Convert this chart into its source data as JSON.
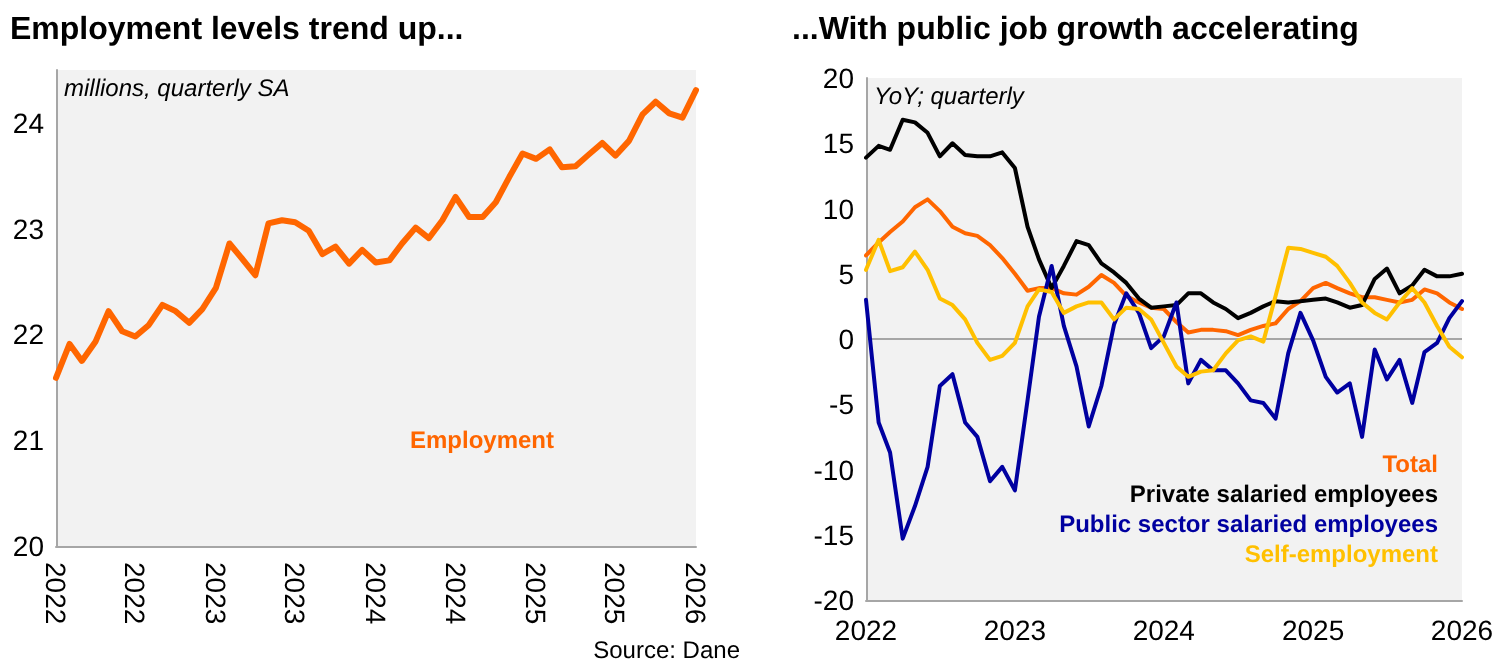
{
  "chart_data": [
    {
      "type": "line",
      "title": "Employment levels trend up...",
      "annotations": [
        "millions, quarterly SA",
        "Source: Dane"
      ],
      "x": [
        "2022-01",
        "2022-02",
        "2022-03",
        "2022-04",
        "2022-05",
        "2022-06",
        "2022-07",
        "2022-08",
        "2022-09",
        "2022-10",
        "2022-11",
        "2022-12",
        "2023-01",
        "2023-02",
        "2023-03",
        "2023-04",
        "2023-05",
        "2023-06",
        "2023-07",
        "2023-08",
        "2023-09",
        "2023-10",
        "2023-11",
        "2023-12",
        "2024-01",
        "2024-02",
        "2024-03",
        "2024-04",
        "2024-05",
        "2024-06",
        "2024-07",
        "2024-08",
        "2024-09",
        "2024-10",
        "2024-11",
        "2024-12",
        "2025-01",
        "2025-02",
        "2025-03",
        "2025-04",
        "2025-05",
        "2025-06",
        "2025-07",
        "2025-08",
        "2025-09",
        "2025-10",
        "2025-11",
        "2025-12",
        "2026-01"
      ],
      "series": [
        {
          "name": "Employment",
          "color": "#ff6600",
          "values": [
            21.59,
            21.91,
            21.75,
            21.93,
            22.22,
            22.03,
            21.98,
            22.09,
            22.28,
            22.22,
            22.11,
            22.24,
            22.44,
            22.86,
            22.72,
            22.56,
            23.05,
            23.08,
            23.06,
            22.98,
            22.76,
            22.83,
            22.67,
            22.8,
            22.68,
            22.7,
            22.86,
            23.01,
            22.91,
            23.08,
            23.3,
            23.11,
            23.11,
            23.25,
            23.49,
            23.71,
            23.66,
            23.75,
            23.58,
            23.59,
            23.7,
            23.81,
            23.69,
            23.83,
            24.08,
            24.2,
            24.09,
            24.05,
            24.31
          ]
        }
      ],
      "xlim": [
        "2022-01",
        "2026-01"
      ],
      "xticks": [
        {
          "value": "2022-01",
          "label": "2022"
        },
        {
          "value": "2022-07",
          "label": "2022"
        },
        {
          "value": "2023-01",
          "label": "2023"
        },
        {
          "value": "2023-07",
          "label": "2023"
        },
        {
          "value": "2024-01",
          "label": "2024"
        },
        {
          "value": "2024-07",
          "label": "2024"
        },
        {
          "value": "2025-01",
          "label": "2025"
        },
        {
          "value": "2025-07",
          "label": "2025"
        },
        {
          "value": "2026-01",
          "label": "2026"
        }
      ],
      "ylim": [
        20,
        24.5
      ],
      "yticks": [
        20,
        21,
        22,
        23,
        24
      ],
      "grid": false,
      "legend": "bottom",
      "marker": "none",
      "line_style": "solid"
    },
    {
      "type": "line",
      "title": "...With public job growth accelerating",
      "annotations": [
        "YoY; quarterly"
      ],
      "x": [
        "2022-01",
        "2022-02",
        "2022-03",
        "2022-04",
        "2022-05",
        "2022-06",
        "2022-07",
        "2022-08",
        "2022-09",
        "2022-10",
        "2022-11",
        "2022-12",
        "2023-01",
        "2023-02",
        "2023-03",
        "2023-04",
        "2023-05",
        "2023-06",
        "2023-07",
        "2023-08",
        "2023-09",
        "2023-10",
        "2023-11",
        "2023-12",
        "2024-01",
        "2024-02",
        "2024-03",
        "2024-04",
        "2024-05",
        "2024-06",
        "2024-07",
        "2024-08",
        "2024-09",
        "2024-10",
        "2024-11",
        "2024-12",
        "2025-01",
        "2025-02",
        "2025-03",
        "2025-04",
        "2025-05",
        "2025-06",
        "2025-07",
        "2025-08",
        "2025-09",
        "2025-10",
        "2025-11",
        "2025-12",
        "2026-01"
      ],
      "series": [
        {
          "name": "Total",
          "color": "#ff6600",
          "values": [
            6.4,
            7.4,
            8.2,
            9.0,
            10.1,
            10.7,
            9.8,
            8.6,
            8.1,
            7.9,
            7.2,
            6.2,
            5.0,
            3.7,
            3.9,
            3.9,
            3.5,
            3.4,
            4.0,
            4.9,
            4.3,
            3.3,
            2.8,
            2.4,
            2.3,
            1.3,
            0.5,
            0.7,
            0.7,
            0.6,
            0.3,
            0.7,
            1.0,
            1.2,
            2.3,
            2.9,
            3.9,
            4.3,
            3.9,
            3.5,
            3.2,
            3.2,
            3.0,
            2.8,
            3.0,
            3.8,
            3.5,
            2.8,
            2.3
          ]
        },
        {
          "name": "Private salaried employees",
          "color": "#000000",
          "values": [
            13.9,
            14.8,
            14.5,
            16.8,
            16.6,
            15.8,
            14.0,
            15.0,
            14.1,
            14.0,
            14.0,
            14.3,
            13.1,
            8.6,
            6.1,
            3.9,
            5.6,
            7.5,
            7.2,
            5.8,
            5.1,
            4.3,
            3.1,
            2.4,
            2.5,
            2.6,
            3.5,
            3.5,
            2.8,
            2.3,
            1.6,
            2.0,
            2.5,
            2.9,
            2.8,
            2.9,
            3.0,
            3.1,
            2.8,
            2.4,
            2.6,
            4.6,
            5.4,
            3.5,
            4.1,
            5.3,
            4.8,
            4.8,
            5.0
          ]
        },
        {
          "name": "Public sector salaried employees",
          "color": "#0000a0",
          "values": [
            3.0,
            -6.4,
            -8.7,
            -15.3,
            -12.8,
            -9.8,
            -3.6,
            -2.7,
            -6.4,
            -7.5,
            -10.9,
            -9.8,
            -11.6,
            -4.7,
            1.7,
            5.6,
            1.0,
            -2.1,
            -6.7,
            -3.6,
            1.1,
            3.5,
            2.0,
            -0.7,
            0.2,
            2.8,
            -3.4,
            -1.6,
            -2.4,
            -2.4,
            -3.4,
            -4.7,
            -4.9,
            -6.1,
            -1.1,
            2.0,
            -0.1,
            -2.9,
            -4.1,
            -3.4,
            -7.5,
            -0.8,
            -3.1,
            -1.6,
            -4.9,
            -1.0,
            -0.3,
            1.6,
            2.9
          ]
        },
        {
          "name": "Self-employment",
          "color": "#ffc000",
          "values": [
            5.3,
            7.6,
            5.2,
            5.5,
            6.7,
            5.3,
            3.1,
            2.6,
            1.5,
            -0.3,
            -1.6,
            -1.3,
            -0.3,
            2.5,
            3.8,
            3.6,
            2.0,
            2.5,
            2.8,
            2.8,
            1.5,
            2.4,
            2.3,
            1.5,
            -0.3,
            -2.1,
            -2.9,
            -2.5,
            -2.4,
            -1.1,
            -0.1,
            0.2,
            -0.2,
            3.3,
            7.0,
            6.9,
            6.6,
            6.3,
            5.6,
            4.3,
            2.8,
            2.0,
            1.5,
            2.8,
            3.9,
            2.8,
            1.0,
            -0.6,
            -1.4
          ]
        }
      ],
      "xlim": [
        "2022-01",
        "2026-01"
      ],
      "xticks": [
        {
          "value": "2022-01",
          "label": "2022"
        },
        {
          "value": "2023-01",
          "label": "2023"
        },
        {
          "value": "2024-01",
          "label": "2024"
        },
        {
          "value": "2025-01",
          "label": "2025"
        },
        {
          "value": "2026-01",
          "label": "2026"
        }
      ],
      "ylim": [
        -20,
        20
      ],
      "yticks": [
        -20,
        -15,
        -10,
        -5,
        0,
        5,
        10,
        15,
        20
      ],
      "grid": false,
      "legend": "bottom right",
      "marker": "none",
      "line_style": "solid",
      "ref_lines": [
        {
          "axis": "y",
          "value": 0,
          "color": "#a6a6a6"
        }
      ]
    }
  ]
}
